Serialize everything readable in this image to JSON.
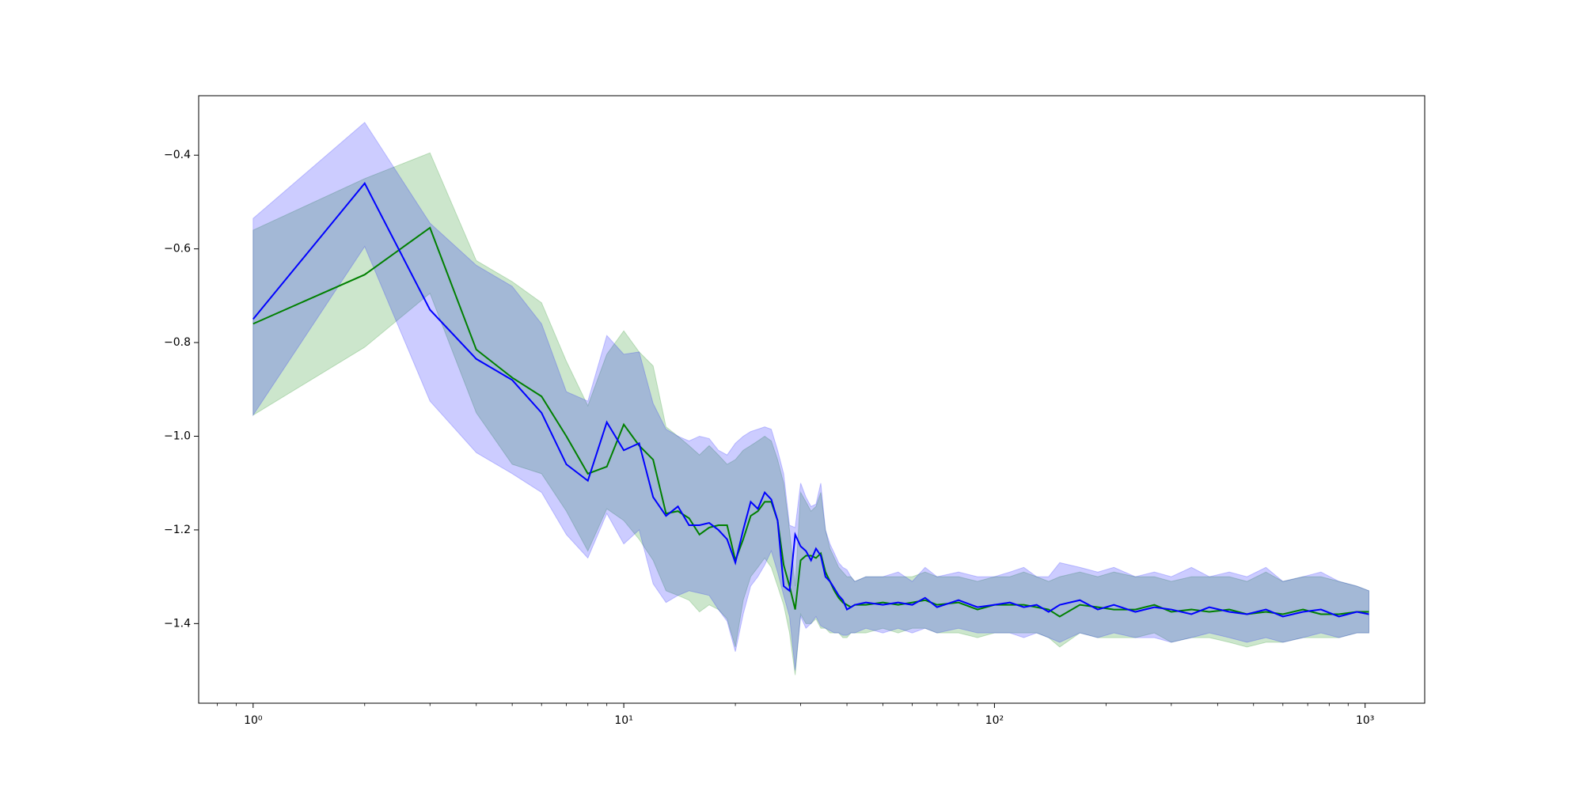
{
  "chart_data": {
    "type": "line",
    "xscale": "log",
    "band_alpha": 0.2,
    "xlim": [
      0.713,
      1448
    ],
    "ylim": [
      -1.57,
      -0.273
    ],
    "xticks": [
      {
        "value": 1,
        "label": "10⁰"
      },
      {
        "value": 10,
        "label": "10¹"
      },
      {
        "value": 100,
        "label": "10²"
      },
      {
        "value": 1000,
        "label": "10³"
      }
    ],
    "xminorticks": [
      0.8,
      0.9,
      2,
      3,
      4,
      5,
      6,
      7,
      8,
      9,
      20,
      30,
      40,
      50,
      60,
      70,
      80,
      90,
      200,
      300,
      400,
      500,
      600,
      700,
      800,
      900
    ],
    "yticks": [
      {
        "value": -1.4,
        "label": "−1.4"
      },
      {
        "value": -1.2,
        "label": "−1.2"
      },
      {
        "value": -1,
        "label": "−1.0"
      },
      {
        "value": -0.8,
        "label": "−0.8"
      },
      {
        "value": -0.6,
        "label": "−0.6"
      },
      {
        "value": -0.4,
        "label": "−0.4"
      }
    ],
    "x": [
      1,
      2,
      3,
      4,
      5,
      6,
      7,
      8,
      9,
      10,
      11,
      12,
      13,
      14,
      15,
      16,
      17,
      18,
      19,
      20,
      21,
      22,
      23,
      24,
      25,
      26,
      27,
      28,
      29,
      30,
      31,
      32,
      33,
      34,
      35,
      36,
      37,
      38,
      39,
      40,
      41,
      42,
      45,
      50,
      55,
      60,
      65,
      70,
      80,
      90,
      100,
      110,
      120,
      130,
      140,
      150,
      170,
      190,
      210,
      240,
      270,
      300,
      340,
      380,
      430,
      480,
      540,
      600,
      680,
      760,
      850,
      950,
      1024
    ],
    "series": [
      {
        "color": "#008000",
        "values": [
          -0.76,
          -0.655,
          -0.555,
          -0.815,
          -0.875,
          -0.915,
          -1.0,
          -1.08,
          -1.065,
          -0.975,
          -1.02,
          -1.05,
          -1.165,
          -1.16,
          -1.175,
          -1.21,
          -1.195,
          -1.19,
          -1.19,
          -1.265,
          -1.22,
          -1.17,
          -1.16,
          -1.14,
          -1.14,
          -1.18,
          -1.275,
          -1.32,
          -1.37,
          -1.265,
          -1.255,
          -1.255,
          -1.26,
          -1.25,
          -1.29,
          -1.31,
          -1.33,
          -1.345,
          -1.355,
          -1.36,
          -1.365,
          -1.36,
          -1.36,
          -1.355,
          -1.36,
          -1.355,
          -1.35,
          -1.36,
          -1.355,
          -1.37,
          -1.36,
          -1.36,
          -1.36,
          -1.365,
          -1.37,
          -1.385,
          -1.36,
          -1.365,
          -1.37,
          -1.37,
          -1.36,
          -1.375,
          -1.37,
          -1.375,
          -1.37,
          -1.38,
          -1.375,
          -1.38,
          -1.37,
          -1.38,
          -1.38,
          -1.375,
          -1.375
        ],
        "upper": [
          -0.56,
          -0.45,
          -0.395,
          -0.625,
          -0.67,
          -0.715,
          -0.84,
          -0.935,
          -0.825,
          -0.775,
          -0.82,
          -0.85,
          -0.98,
          -1.0,
          -1.02,
          -1.04,
          -1.02,
          -1.04,
          -1.06,
          -1.05,
          -1.03,
          -1.02,
          -1.01,
          -1.0,
          -1.01,
          -1.05,
          -1.1,
          -1.2,
          -1.32,
          -1.12,
          -1.14,
          -1.16,
          -1.15,
          -1.12,
          -1.2,
          -1.24,
          -1.26,
          -1.28,
          -1.29,
          -1.3,
          -1.3,
          -1.31,
          -1.3,
          -1.3,
          -1.3,
          -1.3,
          -1.29,
          -1.3,
          -1.3,
          -1.31,
          -1.3,
          -1.3,
          -1.29,
          -1.3,
          -1.31,
          -1.3,
          -1.29,
          -1.3,
          -1.29,
          -1.3,
          -1.3,
          -1.31,
          -1.3,
          -1.3,
          -1.3,
          -1.31,
          -1.29,
          -1.31,
          -1.3,
          -1.3,
          -1.31,
          -1.32,
          -1.33
        ],
        "lower": [
          -0.955,
          -0.81,
          -0.695,
          -0.95,
          -1.06,
          -1.08,
          -1.16,
          -1.245,
          -1.155,
          -1.18,
          -1.22,
          -1.265,
          -1.33,
          -1.34,
          -1.35,
          -1.375,
          -1.36,
          -1.37,
          -1.39,
          -1.45,
          -1.35,
          -1.3,
          -1.28,
          -1.26,
          -1.28,
          -1.32,
          -1.36,
          -1.42,
          -1.51,
          -1.38,
          -1.4,
          -1.4,
          -1.39,
          -1.41,
          -1.41,
          -1.42,
          -1.42,
          -1.42,
          -1.43,
          -1.43,
          -1.42,
          -1.42,
          -1.42,
          -1.41,
          -1.42,
          -1.41,
          -1.41,
          -1.42,
          -1.42,
          -1.43,
          -1.42,
          -1.42,
          -1.42,
          -1.42,
          -1.43,
          -1.45,
          -1.42,
          -1.43,
          -1.43,
          -1.43,
          -1.42,
          -1.44,
          -1.43,
          -1.43,
          -1.44,
          -1.45,
          -1.44,
          -1.44,
          -1.43,
          -1.43,
          -1.43,
          -1.42,
          -1.42
        ]
      },
      {
        "color": "#0000ff",
        "values": [
          -0.75,
          -0.46,
          -0.73,
          -0.835,
          -0.88,
          -0.95,
          -1.06,
          -1.095,
          -0.97,
          -1.03,
          -1.015,
          -1.13,
          -1.17,
          -1.15,
          -1.19,
          -1.19,
          -1.185,
          -1.2,
          -1.22,
          -1.27,
          -1.2,
          -1.14,
          -1.155,
          -1.12,
          -1.135,
          -1.18,
          -1.32,
          -1.33,
          -1.21,
          -1.235,
          -1.245,
          -1.265,
          -1.24,
          -1.255,
          -1.3,
          -1.31,
          -1.325,
          -1.34,
          -1.35,
          -1.37,
          -1.365,
          -1.36,
          -1.355,
          -1.36,
          -1.355,
          -1.36,
          -1.345,
          -1.365,
          -1.35,
          -1.365,
          -1.36,
          -1.355,
          -1.365,
          -1.36,
          -1.375,
          -1.36,
          -1.35,
          -1.37,
          -1.36,
          -1.375,
          -1.365,
          -1.37,
          -1.38,
          -1.365,
          -1.375,
          -1.38,
          -1.37,
          -1.385,
          -1.375,
          -1.37,
          -1.385,
          -1.375,
          -1.38
        ],
        "upper": [
          -0.535,
          -0.33,
          -0.545,
          -0.635,
          -0.68,
          -0.76,
          -0.905,
          -0.925,
          -0.785,
          -0.825,
          -0.82,
          -0.93,
          -0.985,
          -1.0,
          -1.01,
          -1.0,
          -1.005,
          -1.03,
          -1.04,
          -1.015,
          -1.0,
          -0.99,
          -0.985,
          -0.98,
          -0.985,
          -1.03,
          -1.08,
          -1.19,
          -1.195,
          -1.1,
          -1.13,
          -1.15,
          -1.145,
          -1.1,
          -1.2,
          -1.23,
          -1.25,
          -1.27,
          -1.28,
          -1.285,
          -1.3,
          -1.31,
          -1.3,
          -1.3,
          -1.29,
          -1.31,
          -1.28,
          -1.3,
          -1.29,
          -1.3,
          -1.3,
          -1.29,
          -1.28,
          -1.3,
          -1.3,
          -1.27,
          -1.28,
          -1.29,
          -1.28,
          -1.3,
          -1.29,
          -1.3,
          -1.28,
          -1.3,
          -1.29,
          -1.3,
          -1.28,
          -1.31,
          -1.3,
          -1.29,
          -1.31,
          -1.32,
          -1.33
        ],
        "lower": [
          -0.955,
          -0.595,
          -0.925,
          -1.035,
          -1.08,
          -1.12,
          -1.21,
          -1.26,
          -1.165,
          -1.23,
          -1.2,
          -1.315,
          -1.355,
          -1.34,
          -1.33,
          -1.335,
          -1.34,
          -1.37,
          -1.395,
          -1.46,
          -1.38,
          -1.32,
          -1.3,
          -1.275,
          -1.245,
          -1.29,
          -1.34,
          -1.385,
          -1.5,
          -1.385,
          -1.41,
          -1.4,
          -1.385,
          -1.405,
          -1.41,
          -1.415,
          -1.42,
          -1.42,
          -1.425,
          -1.425,
          -1.42,
          -1.42,
          -1.41,
          -1.42,
          -1.41,
          -1.42,
          -1.41,
          -1.42,
          -1.41,
          -1.42,
          -1.42,
          -1.42,
          -1.43,
          -1.42,
          -1.43,
          -1.44,
          -1.42,
          -1.43,
          -1.42,
          -1.43,
          -1.43,
          -1.44,
          -1.43,
          -1.42,
          -1.43,
          -1.44,
          -1.43,
          -1.44,
          -1.43,
          -1.42,
          -1.43,
          -1.42,
          -1.42
        ]
      }
    ]
  }
}
